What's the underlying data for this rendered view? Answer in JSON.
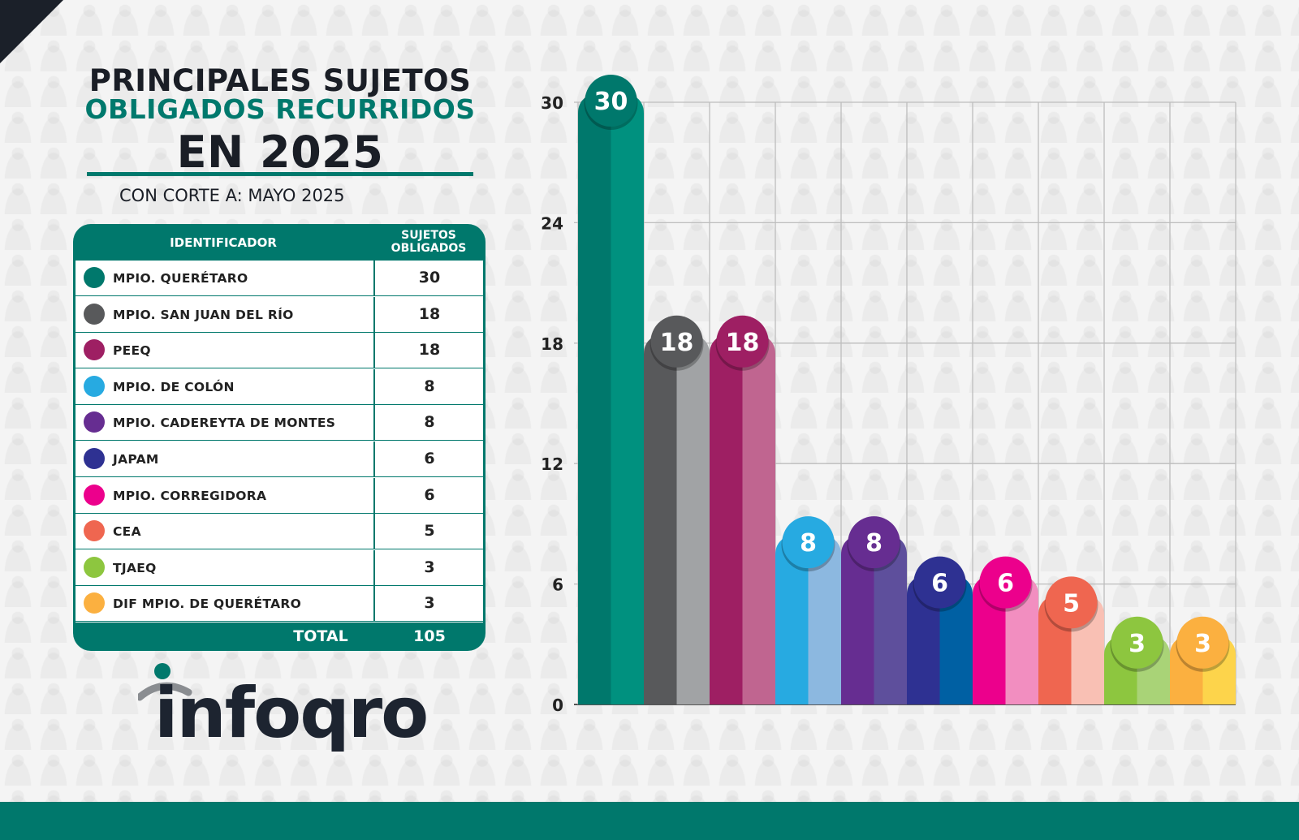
{
  "header": {
    "title_line1": "PRINCIPALES SUJETOS",
    "title_line2": "OBLIGADOS RECURRIDOS",
    "title_line3": "EN 2025",
    "cut_date": "CON CORTE A: MAYO 2025"
  },
  "table": {
    "col_id": "IDENTIFICADOR",
    "col_count_line1": "SUJETOS",
    "col_count_line2": "OBLIGADOS",
    "total_label": "TOTAL",
    "total_value": "105"
  },
  "logo": {
    "text": "infoqro"
  },
  "colors": {
    "brand": "#00786c",
    "dark": "#1a1e26"
  },
  "chart_data": {
    "type": "bar",
    "categories": [
      "MPIO. QUERÉTARO",
      "MPIO. SAN JUAN DEL RÍO",
      "PEEQ",
      "MPIO. DE COLÓN",
      "MPIO. CADEREYTA DE MONTES",
      "JAPAM",
      "MPIO. CORREGIDORA",
      "CEA",
      "TJAEQ",
      "DIF MPIO. DE QUERÉTARO"
    ],
    "values": [
      30,
      18,
      18,
      8,
      8,
      6,
      6,
      5,
      3,
      3
    ],
    "colors_dark": [
      "#00786c",
      "#58595b",
      "#9e1f63",
      "#27aae1",
      "#662d91",
      "#2e3192",
      "#ec008c",
      "#ef6650",
      "#8dc63f",
      "#fbb040"
    ],
    "colors_light": [
      "#00917f",
      "#a1a3a5",
      "#c06590",
      "#8cb8e0",
      "#5e4f9c",
      "#0060a3",
      "#f28ec0",
      "#f9c0b4",
      "#a9d377",
      "#fdd44b"
    ],
    "yticks": [
      0,
      6,
      12,
      18,
      24,
      30
    ],
    "ylim": [
      0,
      30
    ],
    "grid": true
  }
}
